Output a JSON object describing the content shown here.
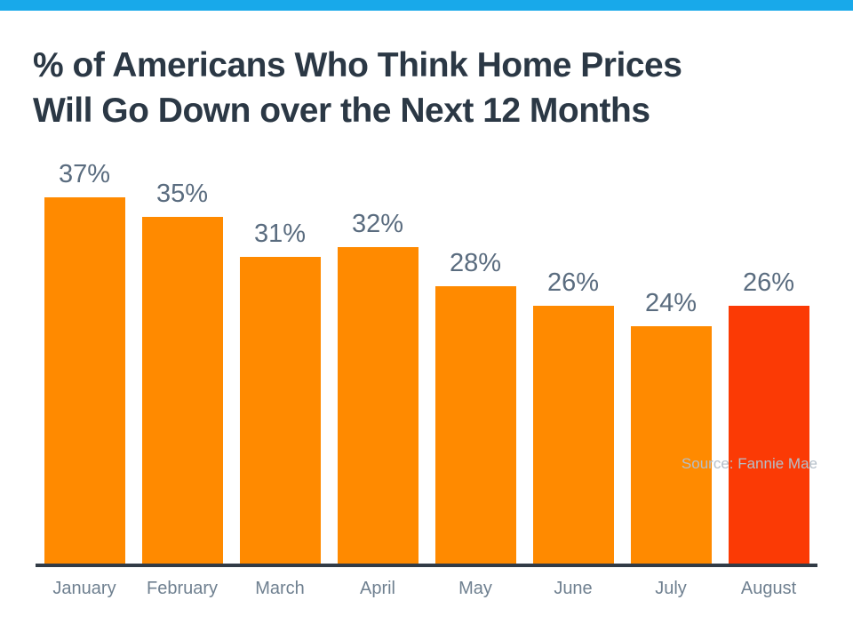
{
  "header": {
    "title_lines": [
      "% of Americans Who Think Home Prices",
      "Will Go Down over the Next 12 Months"
    ]
  },
  "chart_data": {
    "type": "bar",
    "title": "% of Americans Who Think Home Prices Will Go Down over the Next 12 Months",
    "categories": [
      "January",
      "February",
      "March",
      "April",
      "May",
      "June",
      "July",
      "August"
    ],
    "values": [
      37,
      35,
      31,
      32,
      28,
      26,
      24,
      26
    ],
    "labels": [
      "37%",
      "35%",
      "31%",
      "32%",
      "28%",
      "26%",
      "24%",
      "26%"
    ],
    "bar_colors": [
      "#FF8A00",
      "#FF8A00",
      "#FF8A00",
      "#FF8A00",
      "#FF8A00",
      "#FF8A00",
      "#FF8A00",
      "#FB3A05"
    ],
    "unit": "%",
    "ylim": [
      0,
      40
    ],
    "xlabel": "",
    "ylabel": "",
    "grid": false,
    "legend": "none",
    "source": "Source: Fannie Mae"
  },
  "colors": {
    "accent_top_bar": "#18A9EA",
    "title_text": "#2B3845",
    "value_label_text": "#5A6C7F",
    "month_label_text": "#6F8090",
    "axis_line": "#323B46",
    "source_text": "#B5BFC9"
  }
}
